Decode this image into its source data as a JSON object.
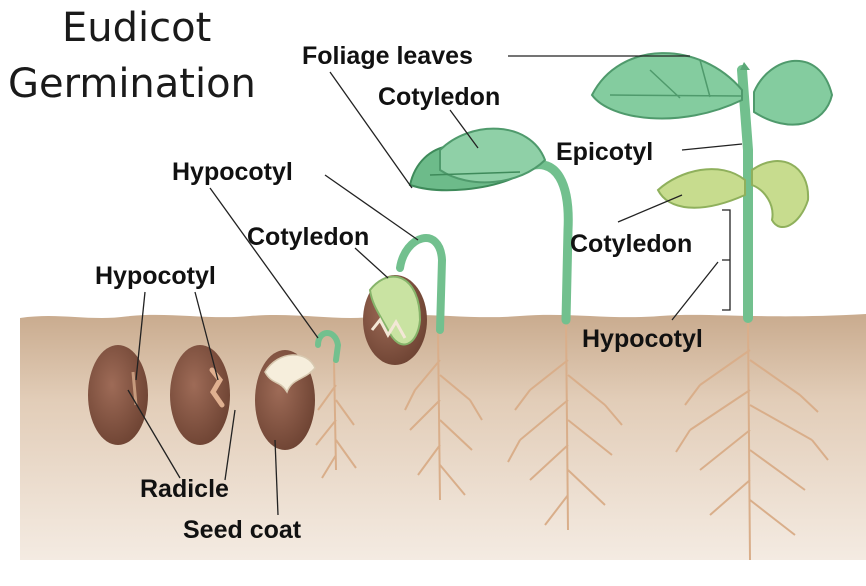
{
  "title": {
    "line1": "Eudicot",
    "line2": "Germination"
  },
  "labels": {
    "foliage_leaves": "Foliage leaves",
    "cotyledon_top": "Cotyledon",
    "hypocotyl_mid": "Hypocotyl",
    "cotyledon_mid": "Cotyledon",
    "epicotyl": "Epicotyl",
    "cotyledon_right": "Cotyledon",
    "hypocotyl_left": "Hypocotyl",
    "hypocotyl_right": "Hypocotyl",
    "radicle": "Radicle",
    "seed_coat": "Seed coat"
  },
  "colors": {
    "soil": "#cfb498",
    "soil_dark": "#bf9f80",
    "stem": "#6fbf8a",
    "leaf": "#7cc79a",
    "leaf_dark": "#4f9a6c",
    "cotyledon_pale": "#c8dc8c",
    "seed": "#8a5a48",
    "seed_dark": "#6b4133",
    "root": "#d8ad8a"
  }
}
